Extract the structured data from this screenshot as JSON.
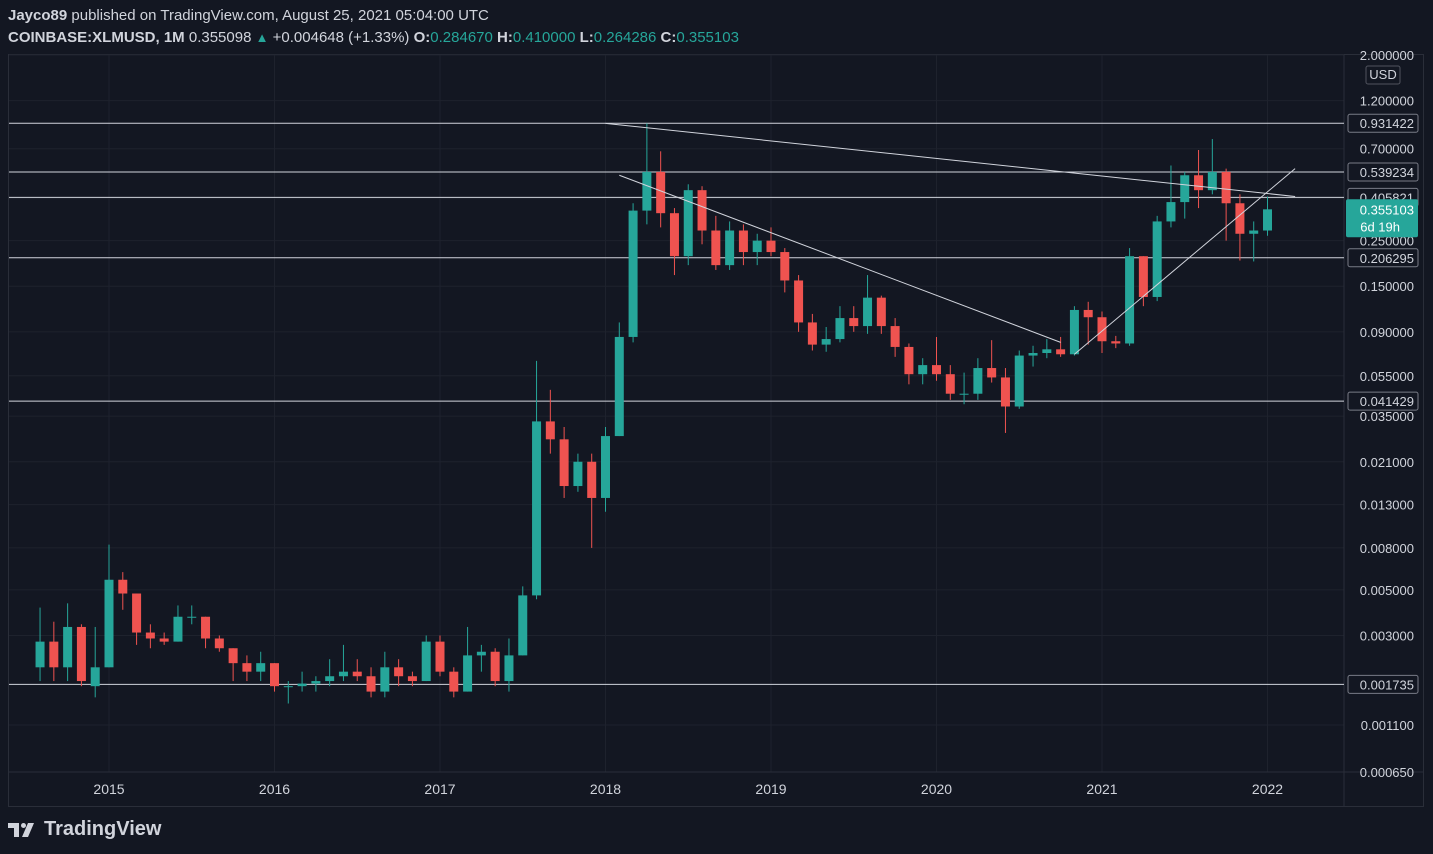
{
  "header": {
    "author": "Jayco89",
    "published": "published on TradingView.com, August 25, 2021 05:04:00 UTC",
    "symbol": "COINBASE:XLMUSD, 1M",
    "last": "0.355098",
    "change": "+0.004648 (+1.33%)",
    "o_label": "O:",
    "o_value": "0.284670",
    "h_label": "H:",
    "h_value": "0.410000",
    "l_label": "L:",
    "l_value": "0.264286",
    "c_label": "C:",
    "c_value": "0.355103"
  },
  "brand": {
    "name": "TradingView"
  },
  "colors": {
    "up": "#26a69a",
    "down": "#ef5350",
    "bg": "#131722",
    "grid": "#1e222d",
    "line": "#d1d4dc"
  },
  "chart_data": {
    "type": "candlestick",
    "scale": "log",
    "currency": "USD",
    "ylim": [
      0.00065,
      2.0
    ],
    "y_ticks": [
      "2.000000",
      "1.200000",
      "0.700000",
      "0.400000",
      "0.250000",
      "0.150000",
      "0.090000",
      "0.055000",
      "0.035000",
      "0.021000",
      "0.013000",
      "0.008000",
      "0.005000",
      "0.003000",
      "0.001100",
      "0.000650"
    ],
    "x_ticks": [
      "2015",
      "2016",
      "2017",
      "2018",
      "2019",
      "2020",
      "2021",
      "2022"
    ],
    "price_badge": {
      "value": "0.355103",
      "countdown": "6d 19h"
    },
    "horizontal_levels": [
      "0.931422",
      "0.539234",
      "0.405821",
      "0.206295",
      "0.041429",
      "0.001735"
    ],
    "trendlines": [
      {
        "from": [
          "2018-01",
          0.93
        ],
        "to": [
          "2022-03",
          0.41
        ]
      },
      {
        "from": [
          "2018-02",
          0.52
        ],
        "to": [
          "2020-10",
          0.08
        ]
      },
      {
        "from": [
          "2020-11",
          0.07
        ],
        "to": [
          "2022-03",
          0.56
        ]
      }
    ],
    "candles": [
      [
        0.0021,
        0.0028,
        0.0041,
        0.0018
      ],
      [
        0.0028,
        0.0021,
        0.0035,
        0.0018
      ],
      [
        0.0021,
        0.0033,
        0.0043,
        0.0018
      ],
      [
        0.0033,
        0.0018,
        0.0034,
        0.0017
      ],
      [
        0.0017,
        0.0021,
        0.0033,
        0.0015
      ],
      [
        0.0021,
        0.0056,
        0.0083,
        0.0021
      ],
      [
        0.0056,
        0.0048,
        0.0061,
        0.004
      ],
      [
        0.0048,
        0.0031,
        0.0048,
        0.0027
      ],
      [
        0.0031,
        0.0029,
        0.0034,
        0.0026
      ],
      [
        0.0029,
        0.0028,
        0.0031,
        0.0027
      ],
      [
        0.0028,
        0.0037,
        0.0042,
        0.0028
      ],
      [
        0.0037,
        0.0037,
        0.0042,
        0.0034
      ],
      [
        0.0037,
        0.0029,
        0.0037,
        0.0026
      ],
      [
        0.0029,
        0.0026,
        0.003,
        0.0025
      ],
      [
        0.0026,
        0.0022,
        0.0026,
        0.0018
      ],
      [
        0.0022,
        0.002,
        0.0024,
        0.0018
      ],
      [
        0.002,
        0.0022,
        0.0025,
        0.0018
      ],
      [
        0.0022,
        0.0017,
        0.0022,
        0.0016
      ],
      [
        0.0017,
        0.0017,
        0.0018,
        0.0014
      ],
      [
        0.0017,
        0.00175,
        0.002,
        0.0016
      ],
      [
        0.00175,
        0.0018,
        0.0019,
        0.0016
      ],
      [
        0.0018,
        0.0019,
        0.0023,
        0.0017
      ],
      [
        0.0019,
        0.002,
        0.0027,
        0.0018
      ],
      [
        0.002,
        0.0019,
        0.0023,
        0.0018
      ],
      [
        0.0019,
        0.0016,
        0.0021,
        0.0015
      ],
      [
        0.0016,
        0.0021,
        0.0025,
        0.0015
      ],
      [
        0.0021,
        0.0019,
        0.0023,
        0.0017
      ],
      [
        0.0019,
        0.0018,
        0.002,
        0.0017
      ],
      [
        0.0018,
        0.0028,
        0.003,
        0.0018
      ],
      [
        0.0028,
        0.002,
        0.003,
        0.0019
      ],
      [
        0.002,
        0.0016,
        0.0021,
        0.0015
      ],
      [
        0.0016,
        0.0024,
        0.0033,
        0.0016
      ],
      [
        0.0024,
        0.0025,
        0.0027,
        0.002
      ],
      [
        0.0025,
        0.0018,
        0.0026,
        0.0017
      ],
      [
        0.0018,
        0.0024,
        0.0029,
        0.0016
      ],
      [
        0.0024,
        0.0047,
        0.0052,
        0.0024
      ],
      [
        0.0047,
        0.033,
        0.065,
        0.0045
      ],
      [
        0.033,
        0.027,
        0.047,
        0.023
      ],
      [
        0.027,
        0.016,
        0.031,
        0.014
      ],
      [
        0.016,
        0.021,
        0.023,
        0.015
      ],
      [
        0.021,
        0.014,
        0.023,
        0.008
      ],
      [
        0.014,
        0.028,
        0.031,
        0.012
      ],
      [
        0.028,
        0.085,
        0.1,
        0.028
      ],
      [
        0.085,
        0.35,
        0.38,
        0.08
      ],
      [
        0.35,
        0.54,
        0.93,
        0.3
      ],
      [
        0.54,
        0.34,
        0.68,
        0.29
      ],
      [
        0.34,
        0.21,
        0.36,
        0.17
      ],
      [
        0.21,
        0.44,
        0.47,
        0.19
      ],
      [
        0.44,
        0.28,
        0.46,
        0.24
      ],
      [
        0.28,
        0.19,
        0.33,
        0.18
      ],
      [
        0.19,
        0.28,
        0.31,
        0.18
      ],
      [
        0.28,
        0.22,
        0.3,
        0.19
      ],
      [
        0.22,
        0.25,
        0.27,
        0.19
      ],
      [
        0.25,
        0.22,
        0.29,
        0.21
      ],
      [
        0.22,
        0.16,
        0.23,
        0.14
      ],
      [
        0.16,
        0.1,
        0.17,
        0.09
      ],
      [
        0.1,
        0.078,
        0.11,
        0.073
      ],
      [
        0.078,
        0.083,
        0.095,
        0.072
      ],
      [
        0.083,
        0.105,
        0.12,
        0.08
      ],
      [
        0.105,
        0.096,
        0.12,
        0.09
      ],
      [
        0.096,
        0.132,
        0.17,
        0.088
      ],
      [
        0.132,
        0.096,
        0.135,
        0.088
      ],
      [
        0.096,
        0.076,
        0.105,
        0.068
      ],
      [
        0.076,
        0.056,
        0.079,
        0.05
      ],
      [
        0.056,
        0.062,
        0.067,
        0.05
      ],
      [
        0.062,
        0.056,
        0.085,
        0.052
      ],
      [
        0.056,
        0.045,
        0.062,
        0.042
      ],
      [
        0.045,
        0.045,
        0.057,
        0.04
      ],
      [
        0.045,
        0.06,
        0.067,
        0.042
      ],
      [
        0.06,
        0.054,
        0.082,
        0.051
      ],
      [
        0.054,
        0.039,
        0.06,
        0.029
      ],
      [
        0.039,
        0.069,
        0.073,
        0.038
      ],
      [
        0.069,
        0.071,
        0.077,
        0.061
      ],
      [
        0.071,
        0.074,
        0.083,
        0.067
      ],
      [
        0.074,
        0.07,
        0.085,
        0.068
      ],
      [
        0.07,
        0.115,
        0.12,
        0.069
      ],
      [
        0.115,
        0.106,
        0.126,
        0.078
      ],
      [
        0.106,
        0.081,
        0.113,
        0.071
      ],
      [
        0.081,
        0.079,
        0.086,
        0.075
      ],
      [
        0.079,
        0.21,
        0.23,
        0.077
      ],
      [
        0.21,
        0.133,
        0.21,
        0.12
      ],
      [
        0.133,
        0.31,
        0.33,
        0.127
      ],
      [
        0.31,
        0.385,
        0.58,
        0.29
      ],
      [
        0.385,
        0.52,
        0.54,
        0.32
      ],
      [
        0.52,
        0.44,
        0.69,
        0.36
      ],
      [
        0.44,
        0.54,
        0.78,
        0.42
      ],
      [
        0.54,
        0.38,
        0.56,
        0.25
      ],
      [
        0.38,
        0.27,
        0.42,
        0.2
      ],
      [
        0.27,
        0.28,
        0.31,
        0.198
      ],
      [
        0.28,
        0.355,
        0.41,
        0.264
      ]
    ]
  }
}
